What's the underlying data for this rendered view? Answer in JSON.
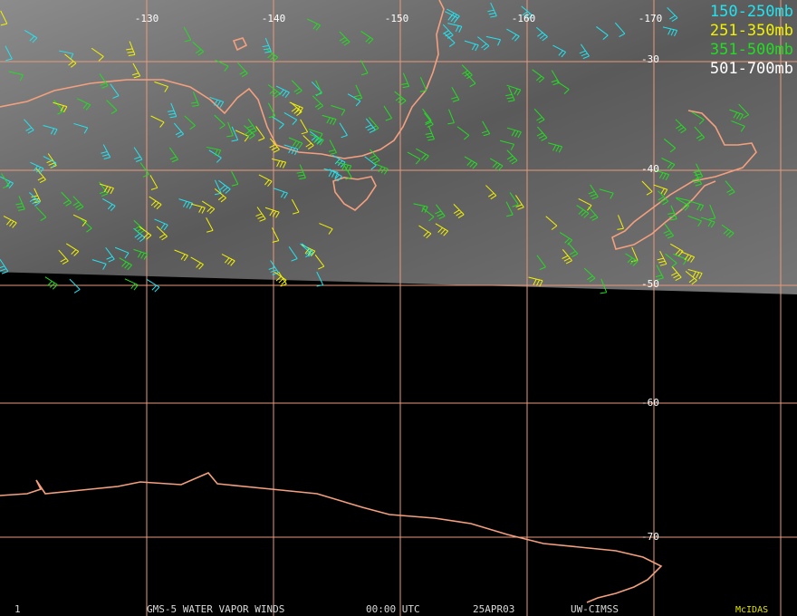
{
  "map": {
    "longitude_labels": [
      "-130",
      "-140",
      "-150",
      "-160",
      "-170"
    ],
    "latitude_labels": [
      "-30",
      "-40",
      "-50",
      "-60",
      "-70"
    ],
    "legend": [
      {
        "label": "150-250mb",
        "color": "#22e4f0"
      },
      {
        "label": "251-350mb",
        "color": "#f2f200"
      },
      {
        "label": "351-500mb",
        "color": "#22dd22"
      },
      {
        "label": "501-700mb",
        "color": "#ffffff"
      }
    ],
    "footer": {
      "frame": "1",
      "title": "GMS-5 WATER VAPOR WINDS",
      "time": "00:00 UTC",
      "date": "25APR03",
      "source": "UW-CIMSS",
      "software": "McIDAS"
    }
  }
}
